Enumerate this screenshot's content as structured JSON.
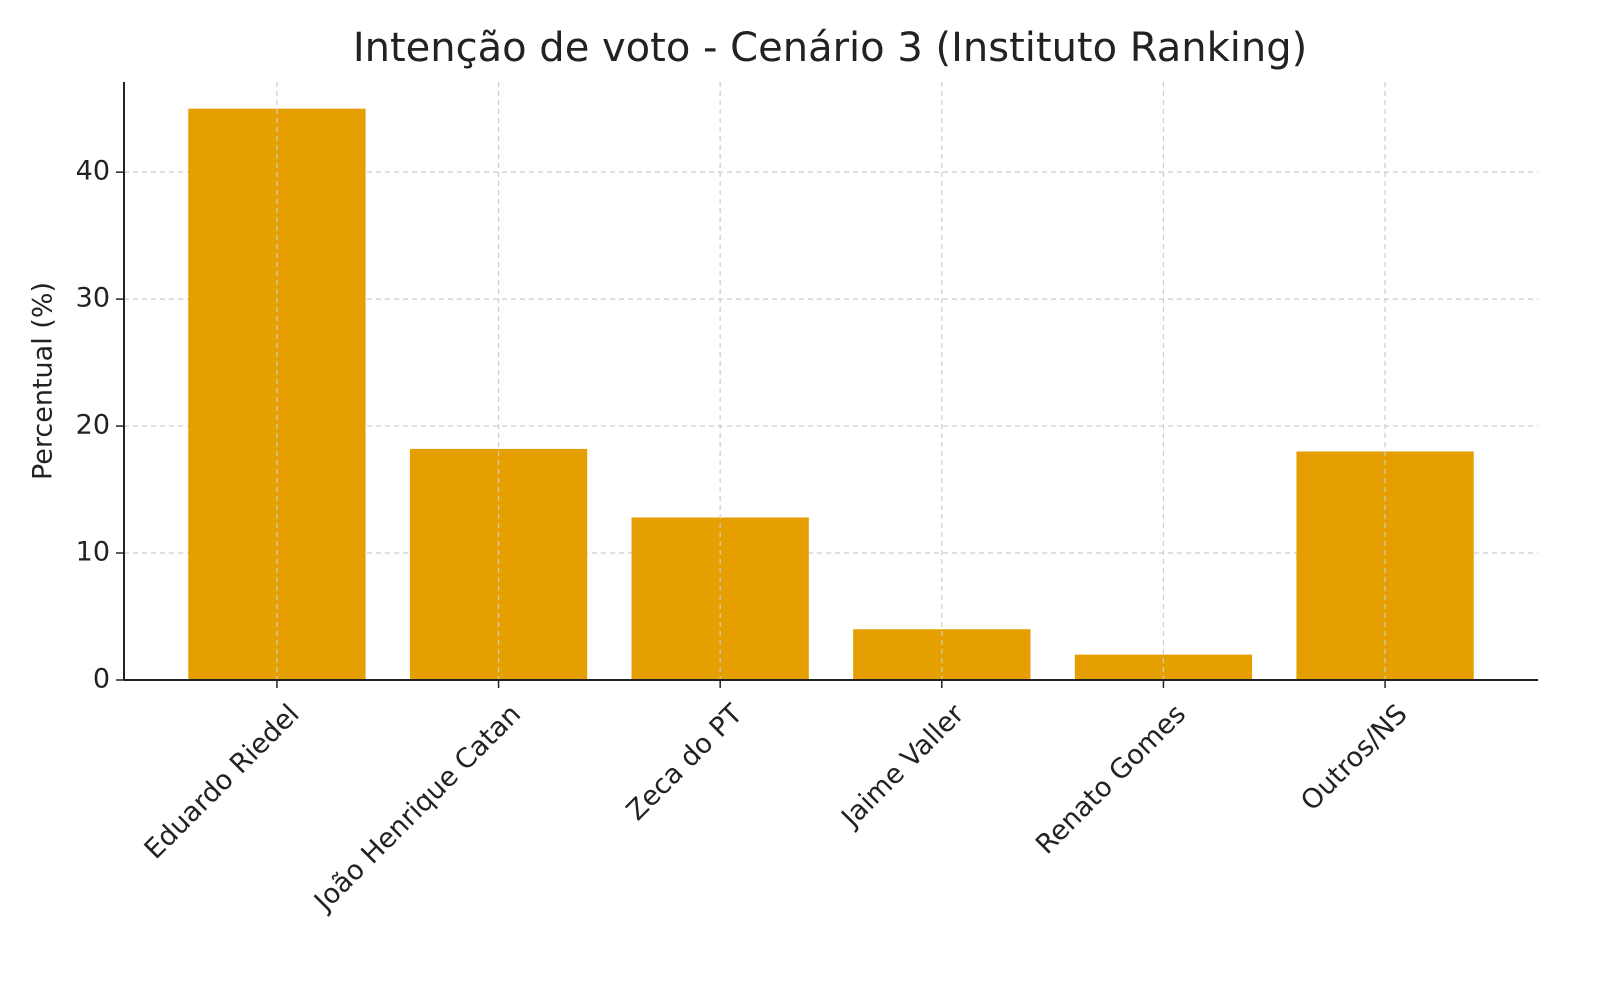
{
  "chart_data": {
    "type": "bar",
    "title": "Intenção de voto - Cenário 3 (Instituto Ranking)",
    "y_label": "Percentual (%)",
    "categories": [
      "Eduardo Riedel",
      "João Henrique Catan",
      "Zeca do PT",
      "Jaime Valler",
      "Renato Gomes",
      "Outros/NS"
    ],
    "values": [
      45,
      18.2,
      12.8,
      4,
      2,
      18
    ],
    "color": "#e69f00",
    "ylim": [
      0,
      47.1
    ],
    "yticks": [
      0,
      10,
      20,
      30,
      40
    ],
    "grid": true
  }
}
